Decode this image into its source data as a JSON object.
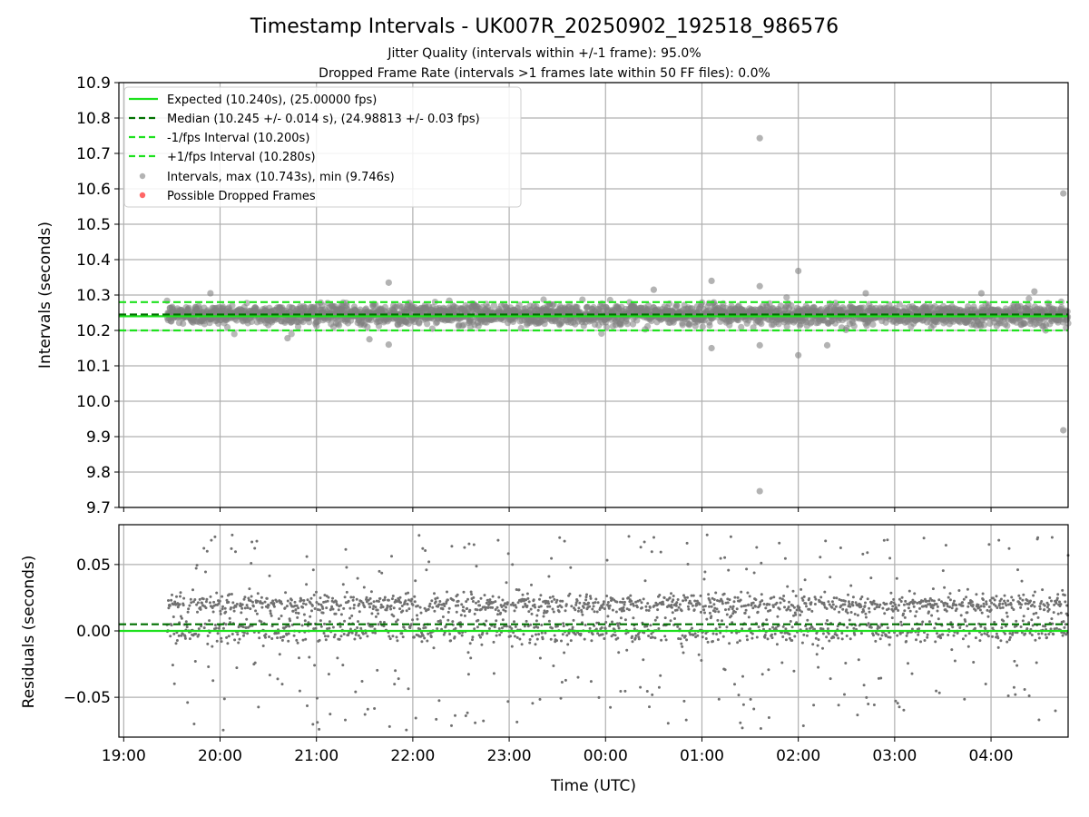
{
  "chart_data": [
    {
      "type": "scatter",
      "title": "Timestamp Intervals - UK007R_20250902_192518_986576",
      "subtitles": [
        "Jitter Quality (intervals within +/-1 frame): 95.0%",
        "Dropped Frame Rate (intervals >1 frames late within 50 FF files): 0.0%"
      ],
      "ylabel": "Intervals (seconds)",
      "xlim_hours": [
        18.95,
        28.8
      ],
      "ylim": [
        9.7,
        10.9
      ],
      "yticks": [
        "10.9",
        "10.8",
        "10.7",
        "10.6",
        "10.5",
        "10.4",
        "10.3",
        "10.2",
        "10.1",
        "10.0",
        "9.9",
        "9.8",
        "9.7"
      ],
      "grid": true,
      "legend_placement": "upper-left",
      "legend": [
        "Expected (10.240s), (25.00000 fps)",
        "Median (10.245 +/- 0.014 s), (24.98813 +/- 0.03 fps)",
        "-1/fps Interval (10.200s)",
        "+1/fps Interval (10.280s)",
        "Intervals, max (10.743s), min (9.746s)",
        "Possible Dropped Frames"
      ],
      "lines": {
        "expected": 10.24,
        "median": 10.245,
        "minus_one_frame": 10.2,
        "plus_one_frame": 10.28
      },
      "data_range_hours": [
        19.45,
        28.8
      ],
      "cluster": {
        "center": 10.245,
        "spread": 0.014
      },
      "outliers": [
        {
          "x": 25.6,
          "y": 10.743
        },
        {
          "x": 25.6,
          "y": 9.746
        },
        {
          "x": 28.75,
          "y": 10.587
        },
        {
          "x": 28.75,
          "y": 9.918
        },
        {
          "x": 26.0,
          "y": 10.368
        },
        {
          "x": 26.0,
          "y": 10.13
        },
        {
          "x": 25.1,
          "y": 10.34
        },
        {
          "x": 25.6,
          "y": 10.325
        },
        {
          "x": 21.75,
          "y": 10.335
        },
        {
          "x": 21.75,
          "y": 10.16
        },
        {
          "x": 21.55,
          "y": 10.175
        },
        {
          "x": 20.7,
          "y": 10.178
        },
        {
          "x": 25.1,
          "y": 10.15
        },
        {
          "x": 25.6,
          "y": 10.158
        },
        {
          "x": 26.3,
          "y": 10.158
        },
        {
          "x": 27.9,
          "y": 10.305
        },
        {
          "x": 19.9,
          "y": 10.305
        },
        {
          "x": 26.7,
          "y": 10.305
        },
        {
          "x": 24.5,
          "y": 10.315
        },
        {
          "x": 28.45,
          "y": 10.31
        }
      ],
      "colors": {
        "expected": "#1ee11e",
        "median": "#007000",
        "points": "#808080",
        "dropped": "#ff6666"
      }
    },
    {
      "type": "scatter",
      "xlabel": "Time (UTC)",
      "ylabel": "Residuals (seconds)",
      "xlim_hours": [
        18.95,
        28.8
      ],
      "ylim": [
        -0.08,
        0.08
      ],
      "yticks": [
        "0.05",
        "0.00",
        "−0.05"
      ],
      "xticks": [
        "19:00",
        "20:00",
        "21:00",
        "22:00",
        "23:00",
        "00:00",
        "01:00",
        "02:00",
        "03:00",
        "04:00"
      ],
      "lines": {
        "zero": 0.0,
        "median_residual": 0.005
      },
      "grid": true
    }
  ]
}
